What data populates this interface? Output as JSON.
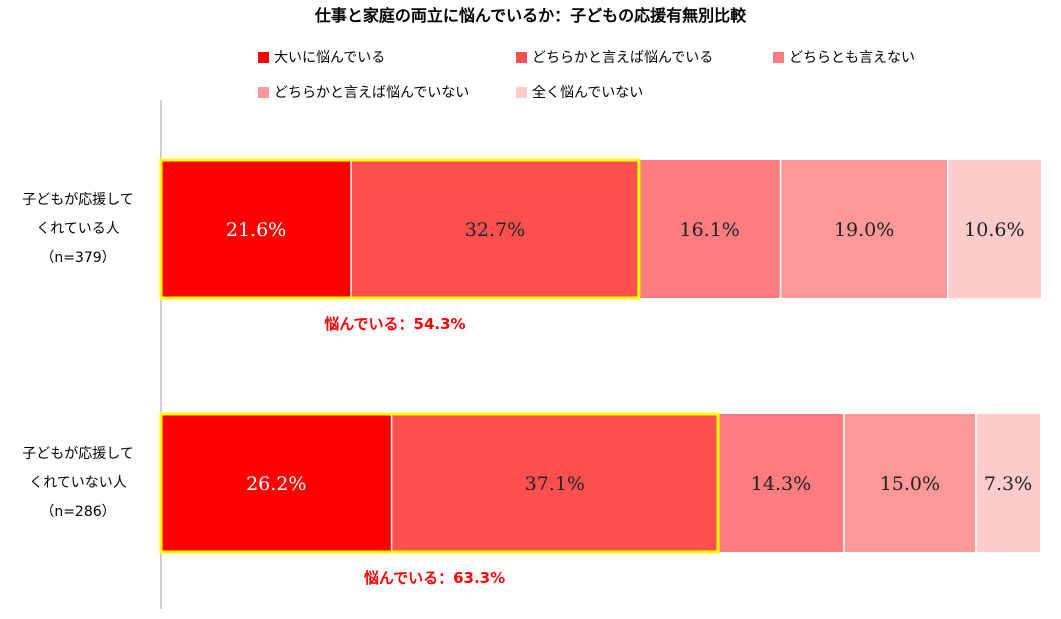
{
  "chart_data": {
    "type": "bar",
    "orientation": "horizontal",
    "stacked": true,
    "percent_stacked": true,
    "title": "仕事と家庭の両立に悩んでいるか：子どもの応援有無別比較",
    "legend_position": "top",
    "grid": false,
    "xlim": [
      0,
      100
    ],
    "categories": [
      [
        "子どもが応援して",
        "くれている人",
        "（n=379）"
      ],
      [
        "子どもが応援して",
        "くれていない人",
        "（n=286）"
      ]
    ],
    "series": [
      {
        "name": "大いに悩んでいる",
        "color": "#ff0000",
        "label_color": "#ffffff",
        "values": [
          21.6,
          26.2
        ]
      },
      {
        "name": "どちらかと言えば悩んでいる",
        "color": "#ff5050",
        "label_color": "#222222",
        "values": [
          32.7,
          37.1
        ]
      },
      {
        "name": "どちらとも言えない",
        "color": "#ff7c80",
        "label_color": "#222222",
        "values": [
          16.1,
          14.3
        ]
      },
      {
        "name": "どちらかと言えば悩んでいない",
        "color": "#ff9999",
        "label_color": "#222222",
        "values": [
          19.0,
          15.0
        ]
      },
      {
        "name": "全く悩んでいない",
        "color": "#ffcccc",
        "label_color": "#222222",
        "values": [
          10.6,
          7.3
        ]
      }
    ],
    "data_labels": [
      [
        "21.6%",
        "32.7%",
        "16.1%",
        "19.0%",
        "10.6%"
      ],
      [
        "26.2%",
        "37.1%",
        "14.3%",
        "15.0%",
        "7.3%"
      ]
    ],
    "annotations": [
      {
        "text": "悩んでいる：54.3%",
        "value": 54.3,
        "spans_series": [
          0,
          1
        ],
        "category_index": 0,
        "color": "#ff0000",
        "box_color": "#ffff00"
      },
      {
        "text": "悩んでいる：63.3%",
        "value": 63.3,
        "spans_series": [
          0,
          1
        ],
        "category_index": 1,
        "color": "#ff0000",
        "box_color": "#ffff00"
      }
    ]
  }
}
